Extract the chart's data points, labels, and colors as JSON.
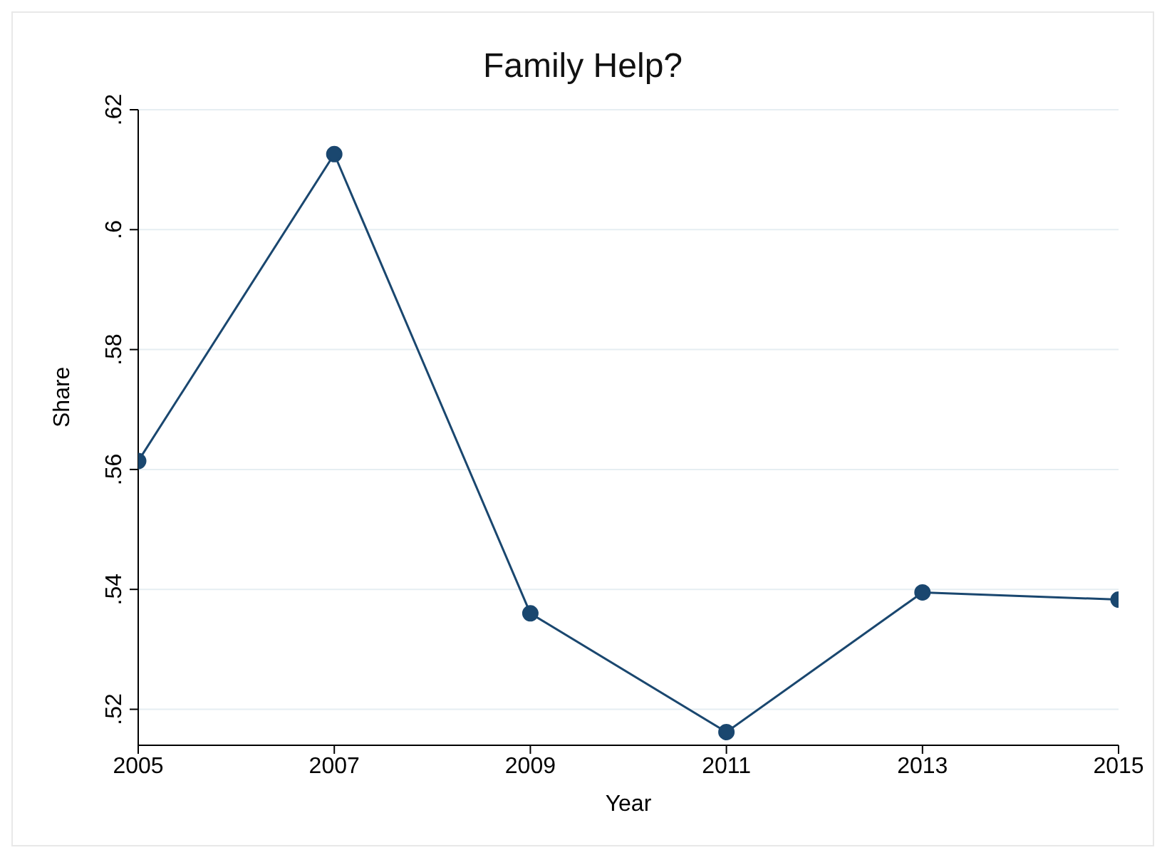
{
  "chart_data": {
    "type": "line",
    "title": "Family Help?",
    "xlabel": "Year",
    "ylabel": "Share",
    "x": [
      2005,
      2007,
      2009,
      2011,
      2013,
      2015
    ],
    "series": [
      {
        "color": "#1a476f",
        "values": [
          0.5614,
          0.6126,
          0.536,
          0.5162,
          0.5395,
          0.5383
        ]
      }
    ],
    "xlim": [
      2005,
      2015
    ],
    "xticks": [
      2005,
      2007,
      2009,
      2011,
      2013,
      2015
    ],
    "ylim": [
      0.514,
      0.62
    ],
    "yticks": [
      {
        "value": 0.52,
        "label": ".52"
      },
      {
        "value": 0.54,
        "label": ".54"
      },
      {
        "value": 0.56,
        "label": ".56"
      },
      {
        "value": 0.58,
        "label": ".58"
      },
      {
        "value": 0.6,
        "label": ".6"
      },
      {
        "value": 0.62,
        "label": ".62"
      }
    ],
    "grid": "y",
    "marker": "circle",
    "line_style": "solid",
    "legend": false
  }
}
